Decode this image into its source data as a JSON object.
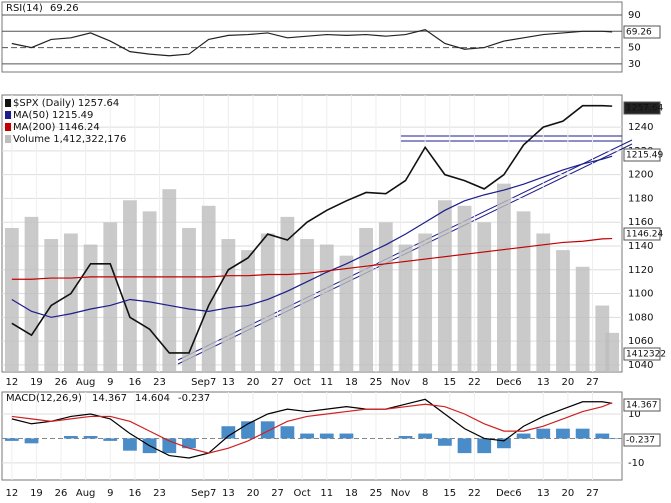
{
  "chart_data": [
    {
      "type": "line",
      "title": "RSI(14)",
      "x": [
        0,
        4,
        8,
        12,
        16,
        20,
        24,
        28,
        32,
        36,
        40,
        44,
        48,
        52,
        56,
        60,
        64,
        68,
        72,
        76,
        80,
        84,
        88,
        92,
        96,
        100,
        104,
        108,
        112,
        116,
        120,
        122
      ],
      "xlim": [
        -2,
        124
      ],
      "series": [
        {
          "name": "RSI(14)",
          "color": "#222222",
          "values": [
            55,
            50,
            60,
            62,
            68,
            58,
            45,
            42,
            40,
            42,
            60,
            65,
            66,
            68,
            62,
            64,
            66,
            65,
            66,
            64,
            66,
            72,
            55,
            48,
            50,
            58,
            62,
            66,
            68,
            70,
            70,
            69.26
          ]
        }
      ],
      "ylim": [
        20,
        106
      ],
      "yticks": [
        30,
        50,
        70,
        90
      ]
    },
    {
      "type": "line",
      "title": "$SPX (Daily)",
      "x": [
        0,
        4,
        8,
        12,
        16,
        20,
        24,
        28,
        32,
        36,
        40,
        44,
        48,
        52,
        56,
        60,
        64,
        68,
        72,
        76,
        80,
        84,
        88,
        92,
        96,
        100,
        104,
        108,
        112,
        116,
        120,
        122
      ],
      "xlim": [
        -2,
        124
      ],
      "xticks": [
        {
          "value": 0,
          "label": "12"
        },
        {
          "value": 5,
          "label": "19"
        },
        {
          "value": 10,
          "label": "26"
        },
        {
          "value": 15,
          "label": "Aug"
        },
        {
          "value": 20,
          "label": "9"
        },
        {
          "value": 25,
          "label": "16"
        },
        {
          "value": 30,
          "label": "23"
        },
        {
          "value": 39,
          "label": "Sep7"
        },
        {
          "value": 44,
          "label": "13"
        },
        {
          "value": 49,
          "label": "20"
        },
        {
          "value": 54,
          "label": "27"
        },
        {
          "value": 59,
          "label": "Oct"
        },
        {
          "value": 64,
          "label": "11"
        },
        {
          "value": 69,
          "label": "18"
        },
        {
          "value": 74,
          "label": "25"
        },
        {
          "value": 79,
          "label": "Nov"
        },
        {
          "value": 84,
          "label": "8"
        },
        {
          "value": 89,
          "label": "15"
        },
        {
          "value": 94,
          "label": "22"
        },
        {
          "value": 101,
          "label": "Dec6"
        },
        {
          "value": 108,
          "label": "13"
        },
        {
          "value": 113,
          "label": "20"
        },
        {
          "value": 118,
          "label": "27"
        }
      ],
      "series": [
        {
          "name": "$SPX (Daily)",
          "color": "#111111",
          "values": [
            1075,
            1065,
            1090,
            1100,
            1125,
            1125,
            1080,
            1070,
            1050,
            1050,
            1090,
            1120,
            1130,
            1150,
            1145,
            1160,
            1170,
            1178,
            1185,
            1184,
            1195,
            1223,
            1200,
            1195,
            1188,
            1200,
            1225,
            1240,
            1245,
            1258,
            1258,
            1257.64
          ]
        },
        {
          "name": "MA(50)",
          "color": "#1c1c8c",
          "values": [
            1095,
            1085,
            1080,
            1083,
            1087,
            1090,
            1095,
            1093,
            1090,
            1087,
            1085,
            1088,
            1090,
            1095,
            1102,
            1110,
            1118,
            1125,
            1133,
            1141,
            1150,
            1160,
            1170,
            1178,
            1183,
            1187,
            1192,
            1198,
            1204,
            1209,
            1213,
            1215.49
          ]
        },
        {
          "name": "MA(200)",
          "color": "#c00000",
          "values": [
            1112,
            1112,
            1113,
            1113,
            1114,
            1114,
            1114,
            1114,
            1114,
            1114,
            1114,
            1115,
            1115,
            1116,
            1116,
            1117,
            1119,
            1121,
            1123,
            1125,
            1127,
            1129,
            1131,
            1133,
            1135,
            1137,
            1139,
            1141,
            1143,
            1144,
            1146,
            1146.24
          ]
        },
        {
          "name": "Volume",
          "legend_value": "1,412,322,176",
          "color": "#bdbdbd",
          "axis": "y2",
          "values": [
            5200000,
            5600000,
            4800000,
            5000000,
            4600000,
            5400000,
            6200000,
            5800000,
            6600000,
            5200000,
            6000000,
            4800000,
            4400000,
            5000000,
            5600000,
            4800000,
            4600000,
            4200000,
            5200000,
            5400000,
            4600000,
            5000000,
            6200000,
            6000000,
            5400000,
            6800000,
            5800000,
            5000000,
            4400000,
            3800000,
            2400000,
            1412322
          ]
        }
      ],
      "ylim": [
        1034,
        1267
      ],
      "yticks": [
        1040,
        1060,
        1080,
        1100,
        1120,
        1140,
        1160,
        1180,
        1200,
        1220,
        1240
      ],
      "y2lim": [
        0,
        10000000
      ]
    },
    {
      "type": "line",
      "title": "MACD(12,26,9)",
      "x": [
        0,
        4,
        8,
        12,
        16,
        20,
        24,
        28,
        32,
        36,
        40,
        44,
        48,
        52,
        56,
        60,
        64,
        68,
        72,
        76,
        80,
        84,
        88,
        92,
        96,
        100,
        104,
        108,
        112,
        116,
        120,
        122
      ],
      "xlim": [
        -2,
        124
      ],
      "xticks": [
        {
          "value": 0,
          "label": "12"
        },
        {
          "value": 5,
          "label": "19"
        },
        {
          "value": 10,
          "label": "26"
        },
        {
          "value": 15,
          "label": "Aug"
        },
        {
          "value": 20,
          "label": "9"
        },
        {
          "value": 25,
          "label": "16"
        },
        {
          "value": 30,
          "label": "23"
        },
        {
          "value": 39,
          "label": "Sep7"
        },
        {
          "value": 44,
          "label": "13"
        },
        {
          "value": 49,
          "label": "20"
        },
        {
          "value": 54,
          "label": "27"
        },
        {
          "value": 59,
          "label": "Oct"
        },
        {
          "value": 64,
          "label": "11"
        },
        {
          "value": 69,
          "label": "18"
        },
        {
          "value": 74,
          "label": "25"
        },
        {
          "value": 79,
          "label": "Nov"
        },
        {
          "value": 84,
          "label": "8"
        },
        {
          "value": 89,
          "label": "15"
        },
        {
          "value": 94,
          "label": "22"
        },
        {
          "value": 101,
          "label": "Dec6"
        },
        {
          "value": 108,
          "label": "13"
        },
        {
          "value": 113,
          "label": "20"
        },
        {
          "value": 118,
          "label": "27"
        }
      ],
      "series": [
        {
          "name": "MACD",
          "color": "#000000",
          "values": [
            8,
            6,
            7,
            9,
            10,
            8,
            2,
            -3,
            -7,
            -8,
            -6,
            1,
            6,
            10,
            12,
            11,
            12,
            13,
            12,
            12,
            14,
            16,
            10,
            4,
            0,
            -1,
            5,
            9,
            12,
            15,
            15,
            14.367
          ]
        },
        {
          "name": "Signal",
          "color": "#d02020",
          "values": [
            9,
            8,
            7,
            8,
            9,
            9,
            7,
            3,
            -1,
            -4,
            -6,
            -4,
            -1,
            3,
            7,
            9,
            10,
            11,
            12,
            12,
            13,
            14,
            13,
            10,
            6,
            3,
            3,
            5,
            8,
            11,
            13,
            14.604
          ]
        },
        {
          "name": "Histogram",
          "color": "#4a8cc8",
          "values": [
            -1,
            -2,
            0,
            1,
            1,
            -1,
            -5,
            -6,
            -6,
            -4,
            0,
            5,
            7,
            7,
            5,
            2,
            2,
            2,
            0,
            0,
            1,
            2,
            -3,
            -6,
            -6,
            -4,
            2,
            4,
            4,
            4,
            2,
            -0.237
          ]
        }
      ],
      "ylim": [
        -17,
        19
      ],
      "yticks": [
        -10,
        10
      ]
    }
  ]
}
